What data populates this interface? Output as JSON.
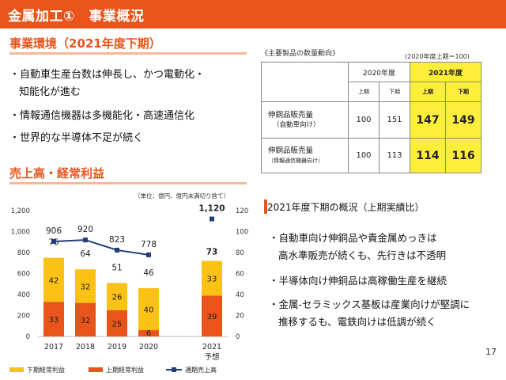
{
  "header": {
    "title": "金属加工①　事業概況"
  },
  "section1": {
    "title": "事業環境（2021年度下期）",
    "bullets": [
      "・自動車生産台数は伸長し、かつ電動化・",
      "知能化が進む",
      "・情報通信機器は多機能化・高速通信化",
      "・世界的な半導体不足が続く"
    ]
  },
  "product_table": {
    "caption": "《主要製品の数量動向》",
    "base_note": "(2020年度上期＝100)",
    "year_headers": [
      "2020年度",
      "2021年度"
    ],
    "half_headers": [
      "上期",
      "下期",
      "上期",
      "下期"
    ],
    "rows": [
      {
        "label_main": "伸銅品販売量",
        "label_sub": "（自動車向け）",
        "values": [
          "100",
          "151",
          "147",
          "149"
        ]
      },
      {
        "label_main": "伸銅品販売量",
        "label_sub": "（情報通信機器向け）",
        "values": [
          "100",
          "113",
          "114",
          "116"
        ]
      }
    ]
  },
  "section2": {
    "title": "売上高・経常利益"
  },
  "chart_data": {
    "type": "bar",
    "unit_note": "（単位：億円、億円未満切り捨て）",
    "categories": [
      "2017",
      "2018",
      "2019",
      "2020",
      "2021"
    ],
    "category_sub": [
      "",
      "",
      "",
      "",
      "予想"
    ],
    "series": [
      {
        "name": "上期経常利益",
        "color": "#e8541a",
        "values": [
          33,
          32,
          25,
          6,
          39
        ]
      },
      {
        "name": "下期経常利益",
        "color": "#fbc114",
        "values": [
          42,
          32,
          26,
          40,
          33
        ]
      },
      {
        "name": "通期売上高",
        "color": "#1f3f7a",
        "values": [
          906,
          920,
          823,
          778,
          1120
        ]
      }
    ],
    "totals": [
      "75",
      "64",
      "51",
      "46",
      "73"
    ],
    "sales_labels": [
      "906",
      "920",
      "823",
      "778",
      "1,120"
    ],
    "left_axis": {
      "ticks": [
        "0",
        "200",
        "400",
        "600",
        "800",
        "1,000",
        "1,200"
      ],
      "range": [
        0,
        1200
      ]
    },
    "right_axis": {
      "ticks": [
        "0",
        "20",
        "40",
        "60",
        "80",
        "100",
        "120"
      ],
      "range": [
        0,
        120
      ]
    }
  },
  "summary": {
    "heading": "2021年度下期の概況（上期実績比）",
    "bullets": [
      "・自動車向け伸銅品や貴金属めっきは",
      "高水準販売が続くも、先行きは不透明",
      "・半導体向け伸銅品は高稼働生産を継続",
      "・金属-セラミックス基板は産業向けが堅調に",
      "推移するも、電鉄向けは低調が続く"
    ]
  },
  "page_number": "17"
}
